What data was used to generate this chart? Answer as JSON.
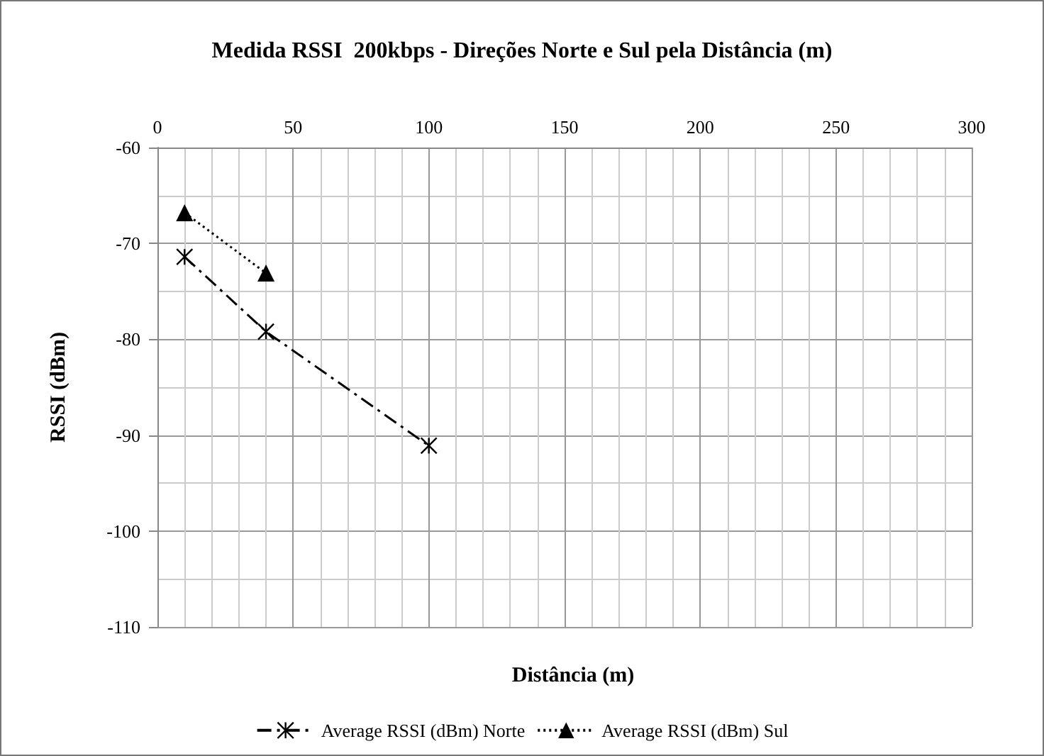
{
  "chart_data": {
    "type": "line",
    "title": "Medida RSSI  200kbps - Direções Norte e Sul pela Distância (m)",
    "xlabel": "Distância (m)",
    "ylabel": "RSSI (dBm)",
    "xlim": [
      0,
      300
    ],
    "xticks": [
      0,
      50,
      100,
      150,
      200,
      250,
      300
    ],
    "ylim": [
      -110,
      -60
    ],
    "yticks": [
      -110,
      -100,
      -90,
      -80,
      -70,
      -60
    ],
    "grid": true,
    "legend": "bottom",
    "series": [
      {
        "name": "Average RSSI (dBm) Norte",
        "color": "#000000",
        "x": [
          10,
          40,
          100
        ],
        "values": [
          -71.4,
          -79.2,
          -91.1
        ],
        "marker": "cross",
        "line_style": "dashed"
      },
      {
        "name": "Average RSSI (dBm) Sul",
        "color": "#000000",
        "x": [
          10,
          40
        ],
        "values": [
          -66.8,
          -73.1
        ],
        "marker": "triangle",
        "line_style": "dotted"
      }
    ]
  }
}
